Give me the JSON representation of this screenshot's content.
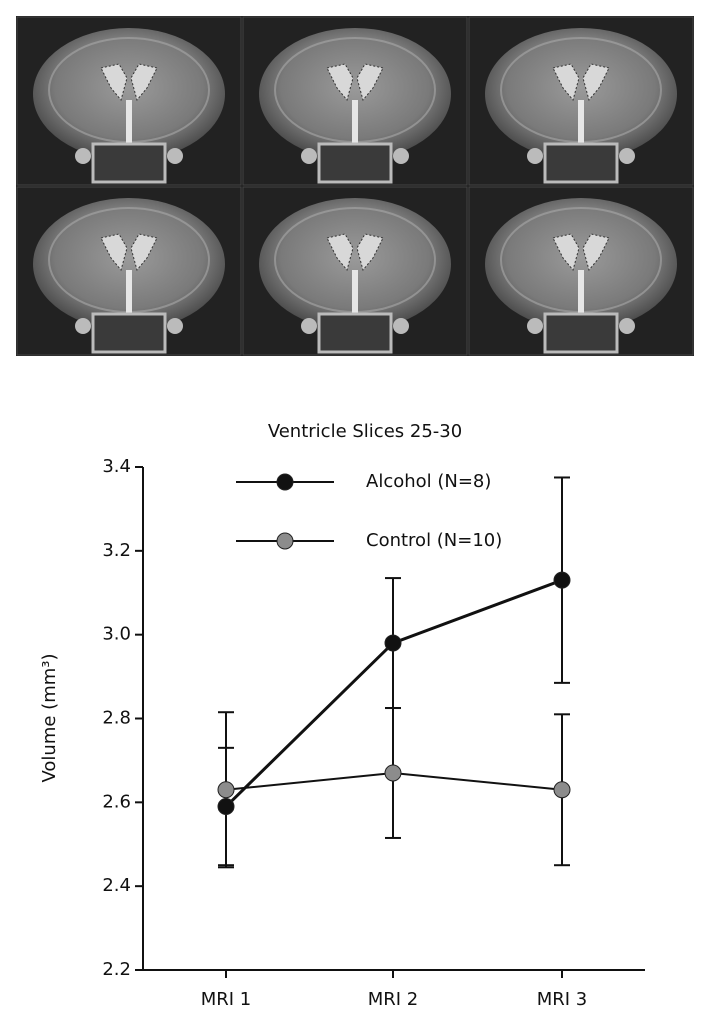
{
  "chart_data": {
    "type": "line",
    "title": "Ventricle Slices 25-30",
    "y_label": "Volume (mm³)",
    "categories": [
      "MRI 1",
      "MRI 2",
      "MRI 3"
    ],
    "series": [
      {
        "name": "Alcohol (N=8)",
        "color": "#111111",
        "values": [
          2.59,
          2.98,
          3.13
        ],
        "errors": [
          0.14,
          0.155,
          0.245
        ]
      },
      {
        "name": "Control (N=10)",
        "color": "#8c8c8c",
        "values": [
          2.63,
          2.67,
          2.63
        ],
        "errors": [
          0.185,
          0.155,
          0.18
        ]
      }
    ],
    "ylim": [
      2.2,
      3.4
    ],
    "yticks": [
      2.2,
      2.4,
      2.6,
      2.8,
      {
        "value": 3,
        "label": "3.0"
      },
      3.2,
      3.4
    ],
    "legend": "upper-left"
  }
}
